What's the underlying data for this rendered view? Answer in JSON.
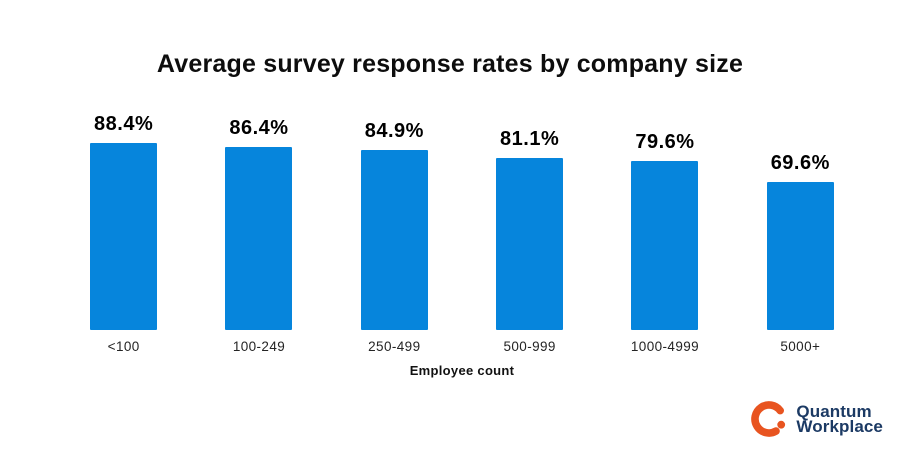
{
  "chart_data": {
    "type": "bar",
    "title": "Average survey response rates by company size",
    "xlabel": "Employee count",
    "ylabel": "",
    "categories": [
      "<100",
      "100-249",
      "250-499",
      "500-999",
      "1000-4999",
      "5000+"
    ],
    "values": [
      88.4,
      86.4,
      84.9,
      81.1,
      79.6,
      69.6
    ],
    "value_labels": [
      "88.4%",
      "86.4%",
      "84.9%",
      "81.1%",
      "79.6%",
      "69.6%"
    ],
    "ylim": [
      0,
      100
    ],
    "bar_color": "#0685DC",
    "grid": false,
    "legend": false,
    "layout_hint": "vertical bars, value labels above bars, category labels below, no axes lines"
  },
  "logo": {
    "name": "Quantum Workplace",
    "line1": "Quantum",
    "line2": "Workplace",
    "icon": "quantum-q-icon",
    "orange": "#E85420",
    "navy": "#1C3A64"
  }
}
